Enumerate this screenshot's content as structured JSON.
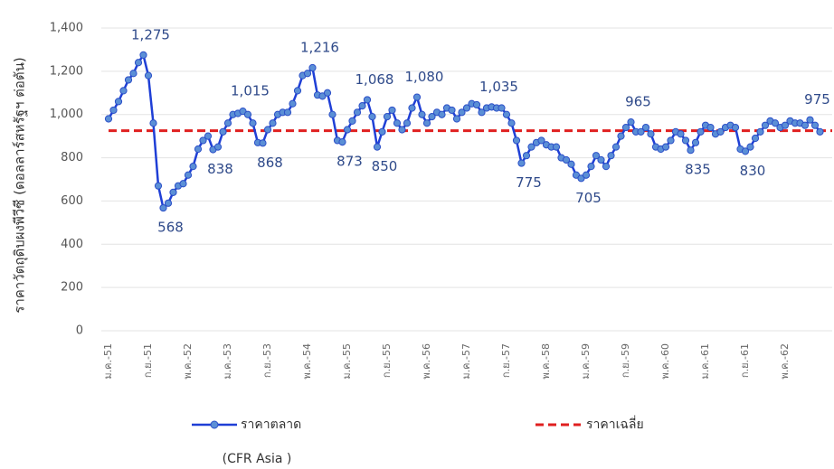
{
  "chart_data": {
    "type": "line",
    "y_label": "ราคาวัตถุดิบผงพีวีซี (ดอลลาร์สหรัฐฯ ต่อตัน)",
    "note": "(CFR Asia )",
    "ylim": [
      0,
      1400
    ],
    "yticks": [
      0,
      200,
      400,
      600,
      800,
      {
        "value": 1000,
        "label": "1,000"
      },
      {
        "value": 1200,
        "label": "1,200"
      },
      {
        "value": 1400,
        "label": "1,400"
      }
    ],
    "grid": true,
    "categories": [
      "ม.ค.-51",
      null,
      null,
      null,
      null,
      null,
      null,
      null,
      "ก.ย.-51",
      null,
      null,
      null,
      null,
      null,
      null,
      null,
      "พ.ค.-52",
      null,
      null,
      null,
      null,
      null,
      null,
      null,
      "ม.ค.-53",
      null,
      null,
      null,
      null,
      null,
      null,
      null,
      "ก.ย.-53",
      null,
      null,
      null,
      null,
      null,
      null,
      null,
      "พ.ค.-54",
      null,
      null,
      null,
      null,
      null,
      null,
      null,
      "ม.ค.-55",
      null,
      null,
      null,
      null,
      null,
      null,
      null,
      "ก.ย.-55",
      null,
      null,
      null,
      null,
      null,
      null,
      null,
      "พ.ค.-56",
      null,
      null,
      null,
      null,
      null,
      null,
      null,
      "ม.ค.-57",
      null,
      null,
      null,
      null,
      null,
      null,
      null,
      "ก.ย.-57",
      null,
      null,
      null,
      null,
      null,
      null,
      null,
      "พ.ค.-58",
      null,
      null,
      null,
      null,
      null,
      null,
      null,
      "ม.ค.-59",
      null,
      null,
      null,
      null,
      null,
      null,
      null,
      "ก.ย.-59",
      null,
      null,
      null,
      null,
      null,
      null,
      null,
      "พ.ค.-60",
      null,
      null,
      null,
      null,
      null,
      null,
      null,
      "ม.ค.-61",
      null,
      null,
      null,
      null,
      null,
      null,
      null,
      "ก.ย.-61",
      null,
      null,
      null,
      null,
      null,
      null,
      null,
      "พ.ค.-62",
      null,
      null,
      null,
      null,
      null,
      null,
      null
    ],
    "series": [
      {
        "name": "ราคาตลาด",
        "color": "#1f3fd6",
        "values": [
          980,
          1020,
          1060,
          1110,
          1160,
          1190,
          1240,
          1275,
          1180,
          960,
          670,
          568,
          590,
          640,
          670,
          680,
          720,
          760,
          840,
          880,
          900,
          838,
          850,
          920,
          960,
          1000,
          1005,
          1015,
          1000,
          960,
          870,
          868,
          930,
          960,
          1000,
          1010,
          1010,
          1050,
          1110,
          1180,
          1190,
          1216,
          1090,
          1085,
          1100,
          1000,
          880,
          873,
          930,
          970,
          1010,
          1040,
          1068,
          990,
          850,
          920,
          990,
          1020,
          960,
          930,
          960,
          1030,
          1080,
          1000,
          960,
          990,
          1010,
          1000,
          1030,
          1020,
          980,
          1010,
          1030,
          1050,
          1045,
          1010,
          1030,
          1035,
          1030,
          1030,
          1000,
          960,
          880,
          775,
          810,
          850,
          870,
          880,
          860,
          850,
          850,
          800,
          790,
          770,
          720,
          705,
          720,
          760,
          810,
          790,
          760,
          810,
          850,
          900,
          940,
          965,
          920,
          920,
          940,
          910,
          850,
          840,
          850,
          880,
          920,
          910,
          880,
          835,
          870,
          920,
          950,
          940,
          910,
          920,
          940,
          950,
          940,
          840,
          830,
          850,
          890,
          920,
          950,
          970,
          960,
          940,
          950,
          970,
          960,
          960,
          950,
          975,
          950,
          920
        ],
        "value_labels": [
          null,
          null,
          null,
          null,
          null,
          null,
          null,
          "1,275",
          null,
          null,
          null,
          "568",
          null,
          null,
          null,
          null,
          null,
          null,
          null,
          null,
          null,
          "838",
          null,
          null,
          null,
          null,
          null,
          "1,015",
          null,
          null,
          null,
          "868",
          null,
          null,
          null,
          null,
          null,
          null,
          null,
          null,
          null,
          "1,216",
          null,
          null,
          null,
          null,
          null,
          "873",
          null,
          null,
          null,
          null,
          "1,068",
          null,
          "850",
          null,
          null,
          null,
          null,
          null,
          null,
          null,
          "1,080",
          null,
          null,
          null,
          null,
          null,
          null,
          null,
          null,
          null,
          null,
          null,
          null,
          null,
          null,
          "1,035",
          null,
          null,
          null,
          null,
          null,
          "775",
          null,
          null,
          null,
          null,
          null,
          null,
          null,
          null,
          null,
          null,
          null,
          "705",
          null,
          null,
          null,
          null,
          null,
          null,
          null,
          null,
          null,
          "965",
          null,
          null,
          null,
          null,
          null,
          null,
          null,
          null,
          null,
          null,
          null,
          "835",
          null,
          null,
          null,
          null,
          null,
          null,
          null,
          null,
          null,
          null,
          "830",
          null,
          null,
          null,
          null,
          null,
          null,
          null,
          null,
          null,
          null,
          null,
          null,
          "975",
          null,
          null
        ]
      }
    ],
    "reference_line": {
      "name": "ราคาเฉลี่ย",
      "value": 925,
      "color": "#e02020"
    }
  }
}
